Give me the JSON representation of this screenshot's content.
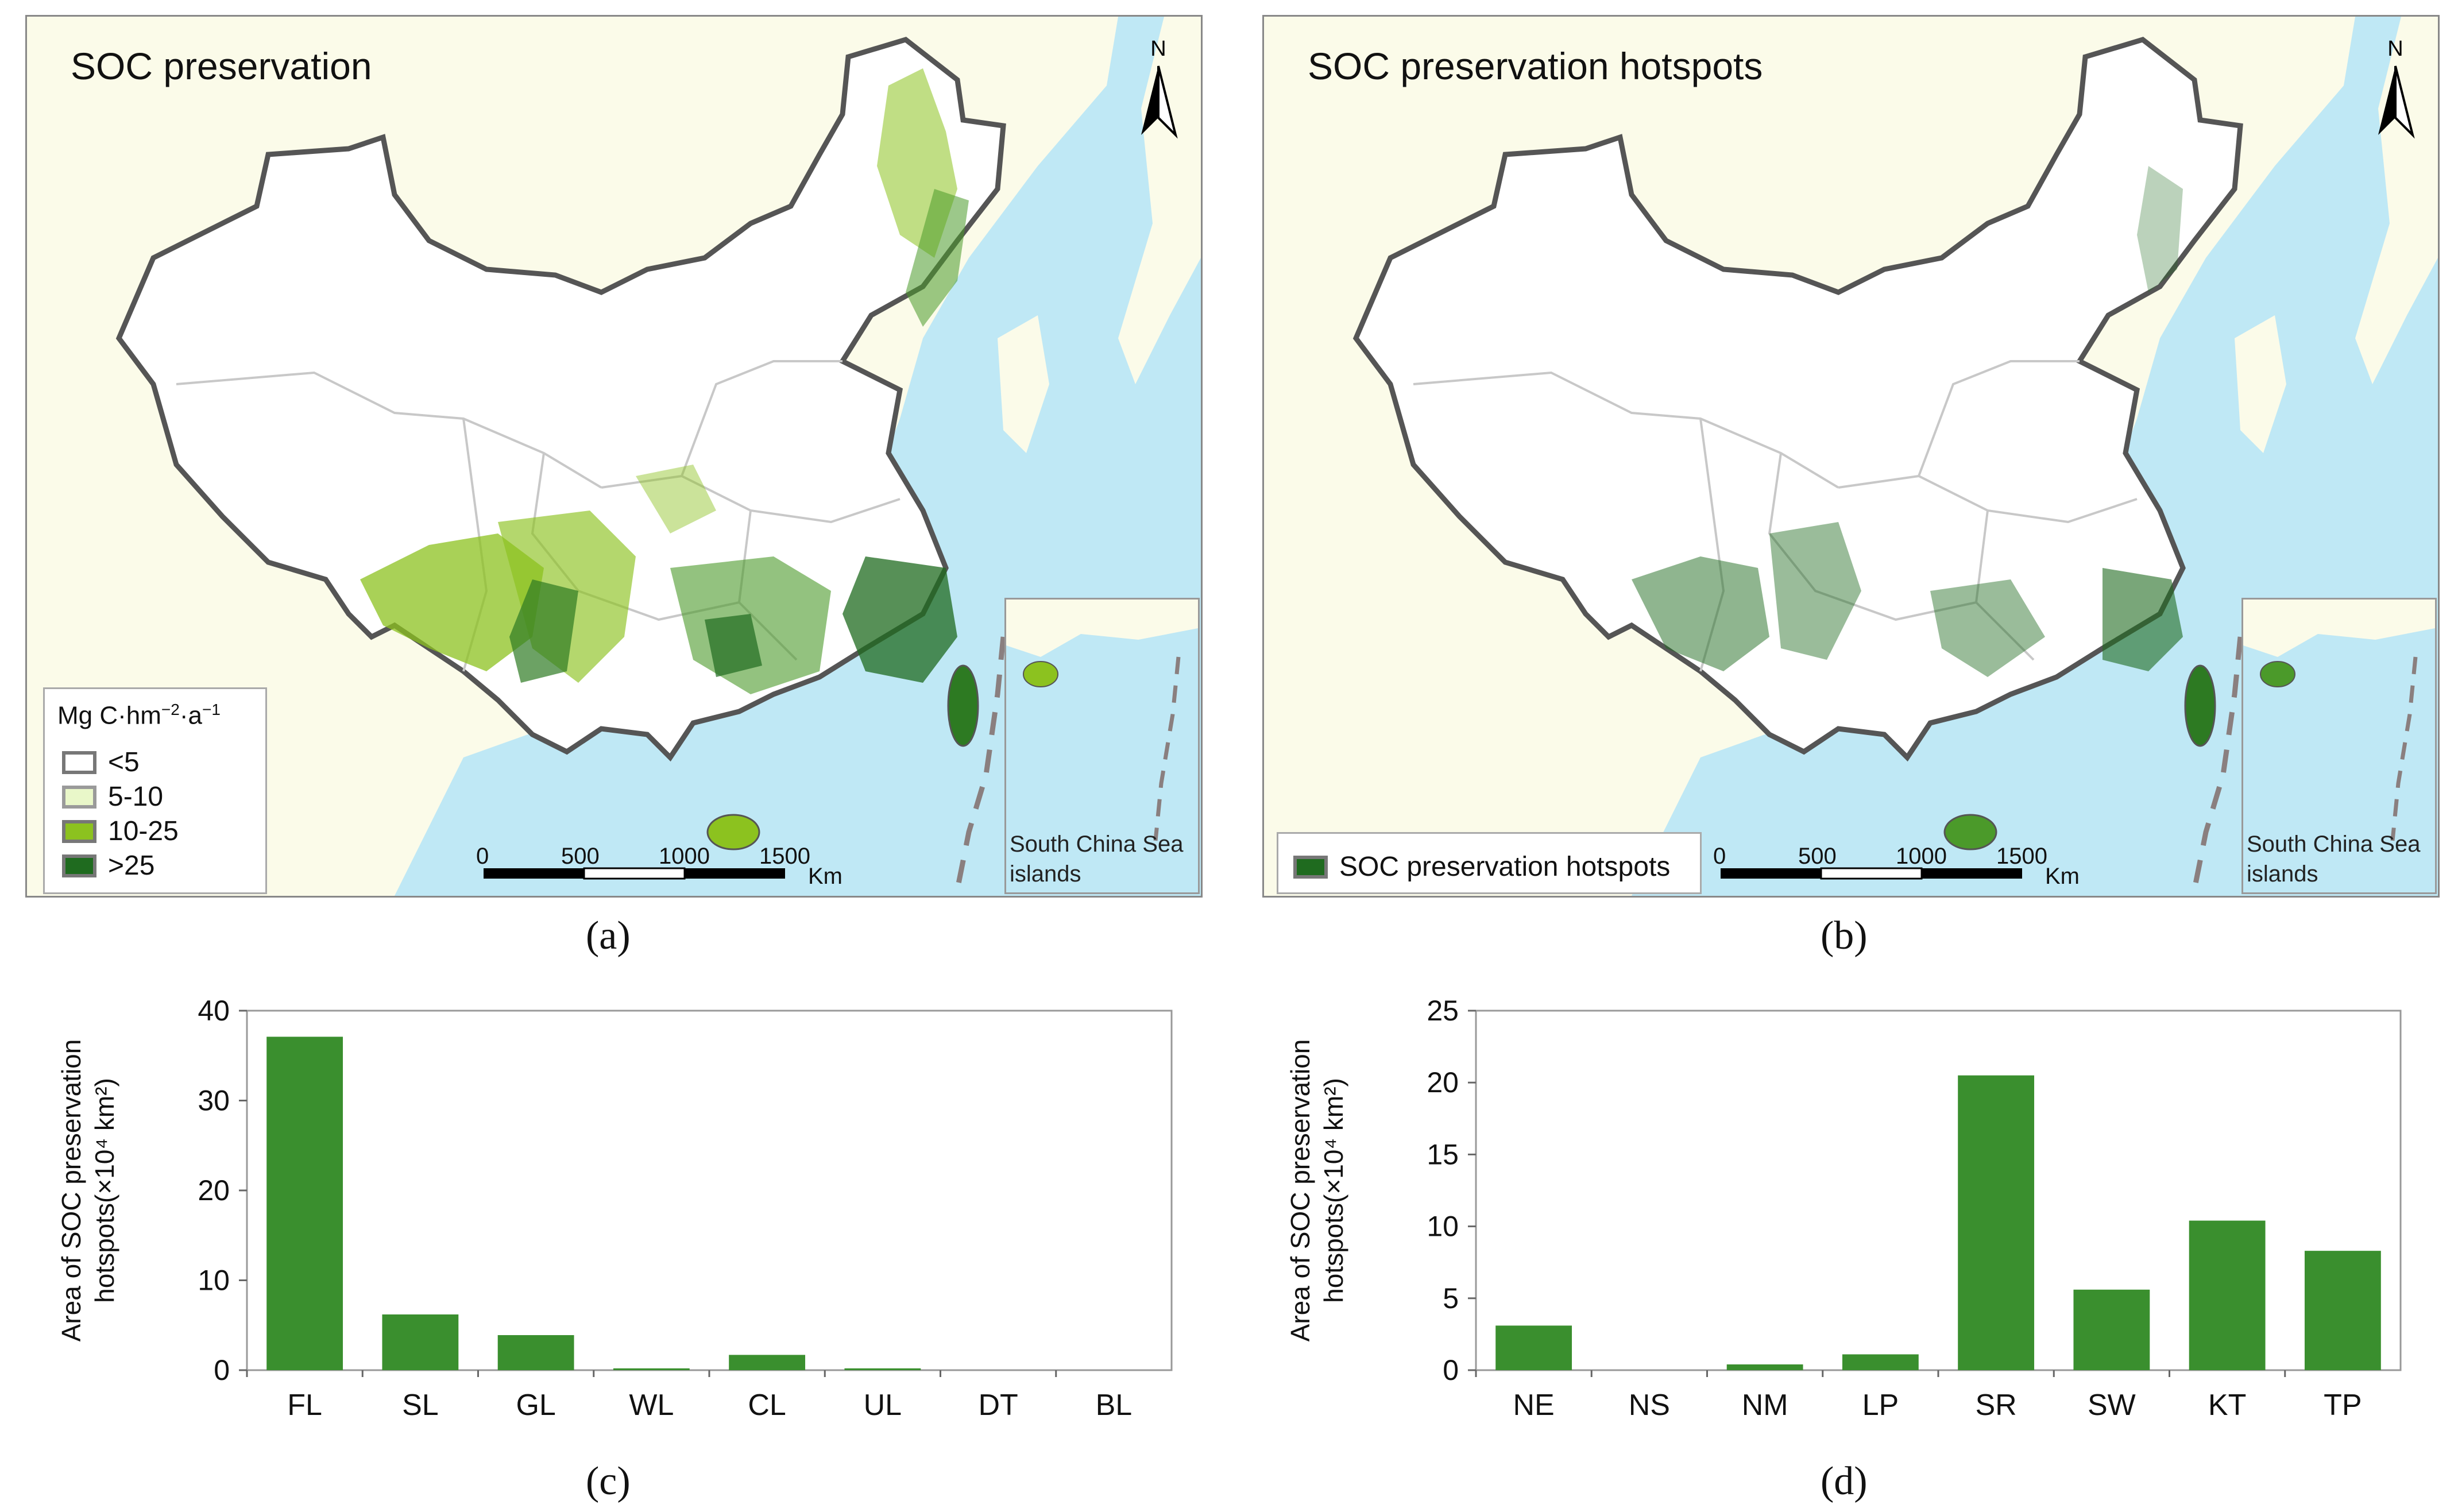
{
  "panel_a": {
    "title": "SOC preservation",
    "caption": "(a)",
    "legend_title_main": "Mg C·hm",
    "legend_title_sup1": "−2",
    "legend_title_mid": "·a",
    "legend_title_sup2": "−1",
    "legend_items": [
      {
        "label": "<5",
        "color": "#ffffff",
        "border": "#777777"
      },
      {
        "label": "5-10",
        "color": "#e9f7c9",
        "border": "#9a9a9a"
      },
      {
        "label": "10-25",
        "color": "#8cc21f",
        "border": "#777777"
      },
      {
        "label": ">25",
        "color": "#1f6b1f",
        "border": "#777777"
      }
    ],
    "inset_label_1": "South China Sea",
    "inset_label_2": "islands",
    "north": "N",
    "scale_ticks": [
      "0",
      "500",
      "1000",
      "1500"
    ],
    "scale_unit": "Km"
  },
  "panel_b": {
    "title": "SOC preservation hotspots",
    "caption": "(b)",
    "legend_item": {
      "label": "SOC preservation hotspots",
      "color": "#1f6b1f"
    },
    "inset_label_1": "South China Sea",
    "inset_label_2": "islands",
    "north": "N",
    "scale_ticks": [
      "0",
      "500",
      "1000",
      "1500"
    ],
    "scale_unit": "Km"
  },
  "colors": {
    "sea": "#bfe8f5",
    "land": "#fbfbe9",
    "china": "#ffffff",
    "border": "#555555",
    "province": "#c8c8c8",
    "bar": "#3a8f2e"
  },
  "chart_data": [
    {
      "type": "bar",
      "caption": "(c)",
      "categories": [
        "FL",
        "SL",
        "GL",
        "WL",
        "CL",
        "UL",
        "DT",
        "BL"
      ],
      "values": [
        37.1,
        6.2,
        3.9,
        0.2,
        1.7,
        0.2,
        0.0,
        0.0
      ],
      "ylabel_line1": "Area of SOC preservation",
      "ylabel_line2": "hotspots(×10⁴ km²)",
      "ylim": [
        0,
        40
      ],
      "yticks": [
        0,
        10,
        20,
        30,
        40
      ]
    },
    {
      "type": "bar",
      "caption": "(d)",
      "categories": [
        "NE",
        "NS",
        "NM",
        "LP",
        "SR",
        "SW",
        "KT",
        "TP"
      ],
      "values": [
        3.1,
        0.0,
        0.4,
        1.1,
        20.5,
        5.6,
        10.4,
        8.3
      ],
      "ylabel_line1": "Area of SOC preservation",
      "ylabel_line2": "hotspots(×10⁴ km²)",
      "ylim": [
        0,
        25
      ],
      "yticks": [
        0,
        5,
        10,
        15,
        20,
        25
      ]
    }
  ]
}
